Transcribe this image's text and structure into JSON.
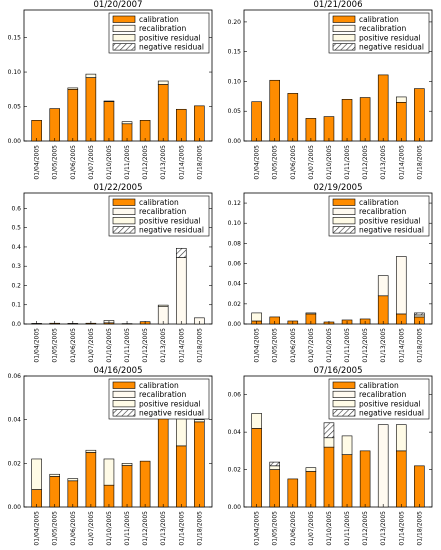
{
  "colors": {
    "calibration": "#ff8c00",
    "recalibration": "#fffaf0",
    "positive_residual": "#fffbe6",
    "negative_residual_fill": "#ffffff",
    "negative_residual_hatch": "#333333",
    "edge": "#000000"
  },
  "legend": [
    "calibration",
    "recalibration",
    "positive residual",
    "negative residual"
  ],
  "chart_data": [
    {
      "type": "bar",
      "title": "01/20/2007",
      "categories": [
        "01/04/2005",
        "01/05/2005",
        "01/06/2005",
        "01/07/2005",
        "01/10/2005",
        "01/11/2005",
        "01/12/2005",
        "01/13/2005",
        "01/14/2005",
        "01/18/2005"
      ],
      "ylim": [
        0,
        0.19
      ],
      "yticks": [
        "0.00",
        "0.05",
        "0.10",
        "0.15"
      ],
      "series": [
        {
          "name": "calibration",
          "values": [
            0.03,
            0.047,
            0.075,
            0.092,
            0.057,
            0.025,
            0.03,
            0.082,
            0.046,
            0.051
          ]
        },
        {
          "name": "recalibration",
          "values": [
            0,
            0,
            0,
            0,
            0,
            0,
            0,
            0,
            0,
            0
          ]
        },
        {
          "name": "positive residual",
          "values": [
            0,
            0,
            0.002,
            0.005,
            0.001,
            0.003,
            0,
            0.005,
            0,
            0
          ]
        },
        {
          "name": "negative residual",
          "values": [
            0,
            0,
            0,
            0,
            0,
            0,
            0,
            0,
            0,
            0
          ]
        }
      ]
    },
    {
      "type": "bar",
      "title": "01/21/2006",
      "categories": [
        "01/04/2005",
        "01/05/2005",
        "01/06/2005",
        "01/07/2005",
        "01/10/2005",
        "01/11/2005",
        "01/12/2005",
        "01/13/2005",
        "01/14/2005",
        "01/18/2005"
      ],
      "ylim": [
        0,
        0.22
      ],
      "yticks": [
        "0.00",
        "0.05",
        "0.10",
        "0.15",
        "0.20"
      ],
      "series": [
        {
          "name": "calibration",
          "values": [
            0.066,
            0.102,
            0.08,
            0.038,
            0.041,
            0.07,
            0.073,
            0.111,
            0.065,
            0.088
          ]
        },
        {
          "name": "recalibration",
          "values": [
            0,
            0,
            0,
            0,
            0,
            0,
            0,
            0,
            0,
            0
          ]
        },
        {
          "name": "positive residual",
          "values": [
            0,
            0,
            0,
            0,
            0,
            0,
            0,
            0,
            0.009,
            0
          ]
        },
        {
          "name": "negative residual",
          "values": [
            0,
            0,
            0,
            0,
            0,
            0,
            0,
            0,
            0,
            0
          ]
        }
      ]
    },
    {
      "type": "bar",
      "title": "01/22/2005",
      "categories": [
        "01/04/2005",
        "01/05/2005",
        "01/06/2005",
        "01/07/2005",
        "01/10/2005",
        "01/11/2005",
        "01/12/2005",
        "01/13/2005",
        "01/14/2005",
        "01/18/2005"
      ],
      "ylim": [
        0,
        0.68
      ],
      "yticks": [
        "0.0",
        "0.1",
        "0.2",
        "0.3",
        "0.4",
        "0.5",
        "0.6"
      ],
      "series": [
        {
          "name": "calibration",
          "values": [
            0.003,
            0.004,
            0.003,
            0.004,
            0.006,
            0.002,
            0.012,
            0,
            0,
            0
          ]
        },
        {
          "name": "recalibration",
          "values": [
            0,
            0,
            0,
            0,
            0.012,
            0,
            0,
            0.09,
            0.345,
            0.032
          ]
        },
        {
          "name": "positive residual",
          "values": [
            0,
            0,
            0,
            0,
            0,
            0,
            0,
            0.008,
            0,
            0
          ]
        },
        {
          "name": "negative residual",
          "values": [
            0,
            0,
            0,
            0,
            0,
            0,
            0,
            0,
            0.048,
            0
          ]
        }
      ]
    },
    {
      "type": "bar",
      "title": "02/19/2005",
      "categories": [
        "01/04/2005",
        "01/05/2005",
        "01/06/2005",
        "01/07/2005",
        "01/10/2005",
        "01/11/2005",
        "01/12/2005",
        "01/13/2005",
        "01/14/2005",
        "01/18/2005"
      ],
      "ylim": [
        0,
        0.13
      ],
      "yticks": [
        "0.00",
        "0.02",
        "0.04",
        "0.06",
        "0.08",
        "0.10",
        "0.12"
      ],
      "series": [
        {
          "name": "calibration",
          "values": [
            0.003,
            0.007,
            0.003,
            0.01,
            0.002,
            0.004,
            0.005,
            0.028,
            0.01,
            0.007
          ]
        },
        {
          "name": "recalibration",
          "values": [
            0,
            0,
            0,
            0,
            0,
            0,
            0,
            0.02,
            0.057,
            0
          ]
        },
        {
          "name": "positive residual",
          "values": [
            0.008,
            0,
            0,
            0.001,
            0,
            0,
            0,
            0,
            0,
            0.002
          ]
        },
        {
          "name": "negative residual",
          "values": [
            0,
            0,
            0,
            0,
            0,
            0,
            0,
            0,
            0,
            0.002
          ]
        }
      ]
    },
    {
      "type": "bar",
      "title": "04/16/2005",
      "categories": [
        "01/04/2005",
        "01/05/2005",
        "01/06/2005",
        "01/07/2005",
        "01/10/2005",
        "01/11/2005",
        "01/12/2005",
        "01/13/2005",
        "01/14/2005",
        "01/18/2005"
      ],
      "ylim": [
        0,
        0.06
      ],
      "yticks": [
        "0.00",
        "0.02",
        "0.04",
        "0.06"
      ],
      "series": [
        {
          "name": "calibration",
          "values": [
            0.008,
            0.014,
            0.012,
            0.025,
            0.01,
            0.019,
            0.021,
            0.046,
            0.028,
            0.039
          ]
        },
        {
          "name": "recalibration",
          "values": [
            0,
            0,
            0,
            0,
            0,
            0,
            0,
            0,
            0,
            0
          ]
        },
        {
          "name": "positive residual",
          "values": [
            0.014,
            0.001,
            0.001,
            0.001,
            0.012,
            0.001,
            0,
            0.005,
            0.016,
            0.001
          ]
        },
        {
          "name": "negative residual",
          "values": [
            0,
            0,
            0,
            0,
            0,
            0,
            0,
            0,
            0,
            0
          ]
        }
      ]
    },
    {
      "type": "bar",
      "title": "07/16/2005",
      "categories": [
        "01/04/2005",
        "01/05/2005",
        "01/06/2005",
        "01/07/2005",
        "01/10/2005",
        "01/11/2005",
        "01/12/2005",
        "01/13/2005",
        "01/14/2005",
        "01/18/2005"
      ],
      "ylim": [
        0,
        0.07
      ],
      "yticks": [
        "0.00",
        "0.02",
        "0.04",
        "0.06"
      ],
      "series": [
        {
          "name": "calibration",
          "values": [
            0.042,
            0.02,
            0.015,
            0.019,
            0.032,
            0.028,
            0.03,
            0,
            0.03,
            0.022
          ]
        },
        {
          "name": "recalibration",
          "values": [
            0,
            0,
            0,
            0,
            0,
            0,
            0,
            0.044,
            0,
            0
          ]
        },
        {
          "name": "positive residual",
          "values": [
            0.008,
            0.002,
            0,
            0.002,
            0.005,
            0.01,
            0,
            0,
            0.014,
            0
          ]
        },
        {
          "name": "negative residual",
          "values": [
            0,
            0.002,
            0,
            0,
            0.008,
            0,
            0,
            0,
            0,
            0
          ]
        }
      ]
    }
  ]
}
